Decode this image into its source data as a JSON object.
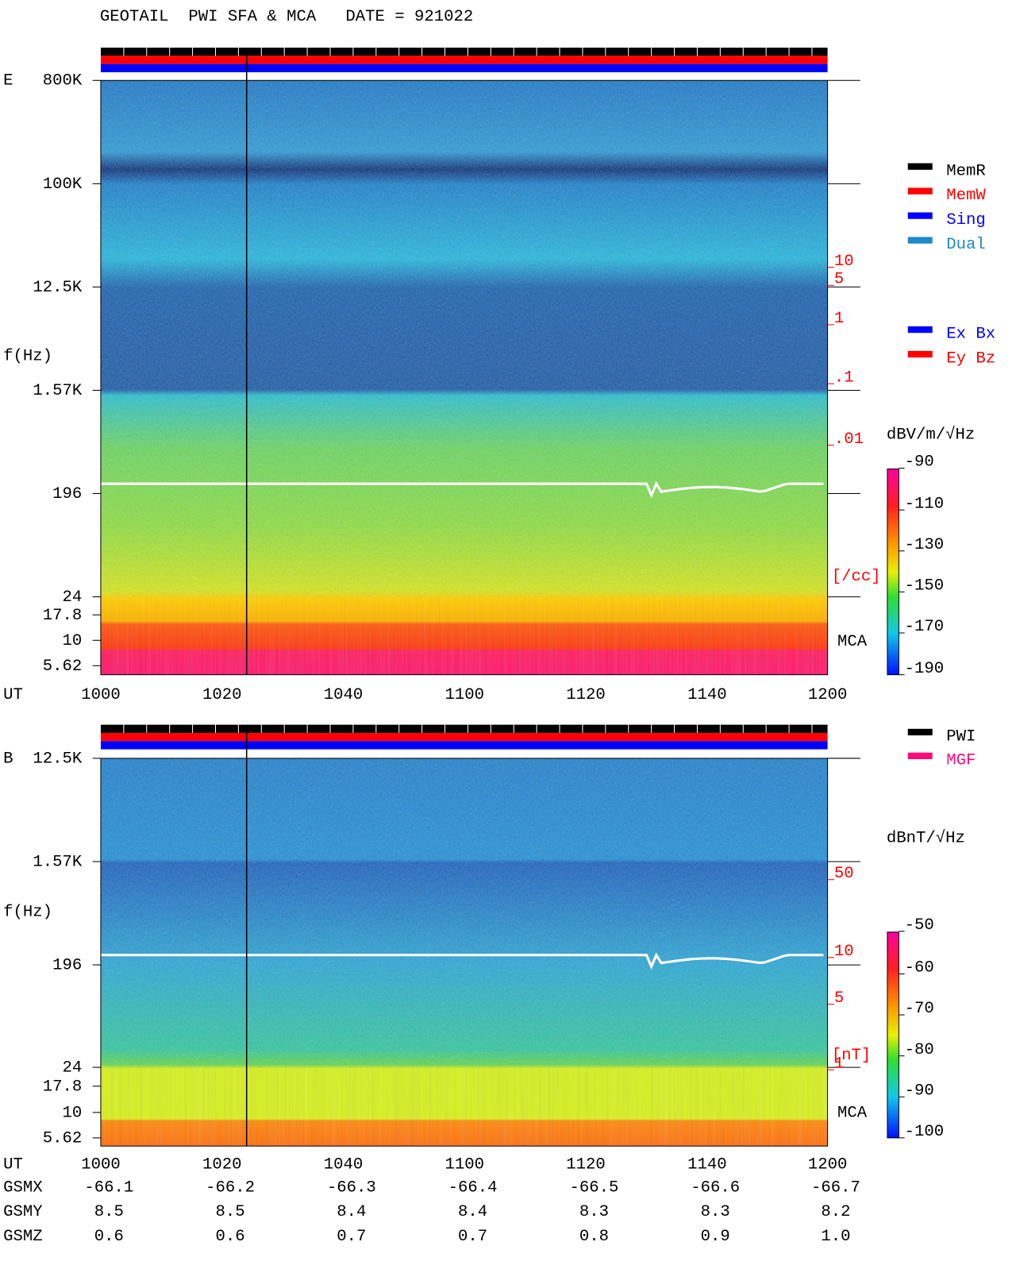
{
  "title": "GEOTAIL  PWI SFA & MCA   DATE = 921022",
  "panels": [
    {
      "label": "E",
      "axis_label": "f(Hz)",
      "freq_ticks": [
        "800K",
        "100K",
        "12.5K",
        "1.57K",
        "196",
        "24",
        "17.8",
        "10",
        "5.62"
      ],
      "time_label": "UT",
      "time_ticks": [
        "1000",
        "1020",
        "1040",
        "1100",
        "1120",
        "1140",
        "1200"
      ],
      "density_ticks": [
        "10",
        "5",
        "1",
        ".1",
        ".01"
      ],
      "density_unit": "[/cc]",
      "mca_label": "MCA",
      "colorbar_unit": "dBV/m/√Hz",
      "colorbar_ticks": [
        "-90",
        "-110",
        "-130",
        "-150",
        "-170",
        "-190"
      ]
    },
    {
      "label": "B",
      "axis_label": "f(Hz)",
      "freq_ticks": [
        "12.5K",
        "1.57K",
        "196",
        "24",
        "17.8",
        "10",
        "5.62"
      ],
      "time_label": "UT",
      "time_ticks": [
        "1000",
        "1020",
        "1040",
        "1100",
        "1120",
        "1140",
        "1200"
      ],
      "density_ticks": [
        "50",
        "10",
        "5",
        "1"
      ],
      "density_unit": "[nT]",
      "mca_label": "MCA",
      "colorbar_unit": "dBnT/√Hz",
      "colorbar_ticks": [
        "-50",
        "-60",
        "-70",
        "-80",
        "-90",
        "-100"
      ]
    }
  ],
  "mode_legend": [
    {
      "name": "MemR",
      "color": "#000000"
    },
    {
      "name": "MemW",
      "color": "#ff0000"
    },
    {
      "name": "Sing",
      "color": "#0000ff"
    },
    {
      "name": "Dual",
      "color": "#1e88c8"
    }
  ],
  "antenna_legend": [
    {
      "name": "Ex Bx",
      "color": "#0000ff"
    },
    {
      "name": "Ey Bz",
      "color": "#ff0000"
    }
  ],
  "source_legend": [
    {
      "name": "PWI",
      "color": "#000000"
    },
    {
      "name": "MGF",
      "color": "#ff0a78"
    }
  ],
  "orbit": [
    {
      "name": "GSMX",
      "values": [
        "-66.1",
        "-66.2",
        "-66.3",
        "-66.4",
        "-66.5",
        "-66.6",
        "-66.7"
      ]
    },
    {
      "name": "GSMY",
      "values": [
        "8.5",
        "8.5",
        "8.4",
        "8.4",
        "8.3",
        "8.3",
        "8.2"
      ]
    },
    {
      "name": "GSMZ",
      "values": [
        "0.6",
        "0.6",
        "0.7",
        "0.7",
        "0.8",
        "0.9",
        "1.0"
      ]
    }
  ]
}
